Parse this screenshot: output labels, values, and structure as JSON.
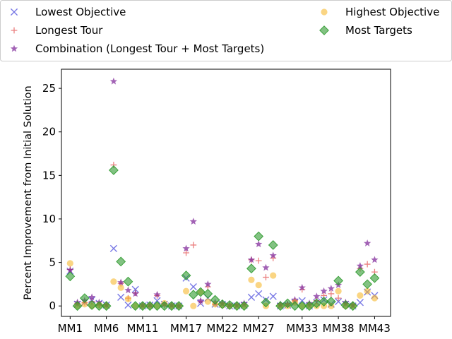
{
  "chart_data": {
    "type": "scatter",
    "title": "",
    "xlabel": "",
    "ylabel": "Percent Improvement from Initial Solution",
    "ylim": [
      -1.2,
      27.2
    ],
    "xlim": [
      -1.2,
      44.2
    ],
    "yticks": [
      0,
      5,
      10,
      15,
      20,
      25
    ],
    "xticks": [
      {
        "x": 0,
        "label": "MM1"
      },
      {
        "x": 5,
        "label": "MM6"
      },
      {
        "x": 10,
        "label": "MM11"
      },
      {
        "x": 16,
        "label": "MM17"
      },
      {
        "x": 21,
        "label": "MM22"
      },
      {
        "x": 26,
        "label": "MM27"
      },
      {
        "x": 32,
        "label": "MM33"
      },
      {
        "x": 37,
        "label": "MM38"
      },
      {
        "x": 42,
        "label": "MM43"
      }
    ],
    "grid": false,
    "legend_placement": "top",
    "series": [
      {
        "name": "Lowest Objective",
        "marker": "x",
        "color": "#4c4cdc",
        "values": [
          4.0,
          0.2,
          0.4,
          0.7,
          0.3,
          0.1,
          6.6,
          1.0,
          0.1,
          1.9,
          0.0,
          0.1,
          0.6,
          0.2,
          0.0,
          0.0,
          3.2,
          2.2,
          0.3,
          0.9,
          0.2,
          0.2,
          0.0,
          0.0,
          0.1,
          1.0,
          1.4,
          0.7,
          1.1,
          0.0,
          0.1,
          0.4,
          0.6,
          0.0,
          0.4,
          0.7,
          0.2,
          0.5,
          0.2,
          0.0,
          0.4,
          1.6,
          1.2
        ]
      },
      {
        "name": "Longest Tour",
        "marker": "plus",
        "color": "#e03c3c",
        "values": [
          4.2,
          0.3,
          0.4,
          0.5,
          0.1,
          0.1,
          16.2,
          2.6,
          0.9,
          1.5,
          0.0,
          0.0,
          1.2,
          0.1,
          0.0,
          0.0,
          6.1,
          7.0,
          0.5,
          2.2,
          0.2,
          0.3,
          0.0,
          0.1,
          0.2,
          5.3,
          5.2,
          3.3,
          5.5,
          0.1,
          0.2,
          0.6,
          1.9,
          0.2,
          0.6,
          1.2,
          1.4,
          0.9,
          0.3,
          0.1,
          4.3,
          4.8,
          3.9
        ]
      },
      {
        "name": "Combination (Longest Tour + Most Targets)",
        "marker": "star",
        "color": "#7b1f95",
        "values": [
          4.1,
          0.4,
          0.6,
          1.0,
          0.4,
          0.1,
          25.8,
          2.7,
          1.8,
          1.4,
          0.1,
          0.1,
          1.3,
          0.2,
          0.1,
          0.0,
          6.6,
          9.7,
          0.6,
          2.5,
          0.4,
          0.3,
          0.1,
          0.1,
          0.3,
          5.3,
          7.1,
          4.4,
          5.8,
          0.2,
          0.2,
          0.7,
          2.1,
          0.3,
          1.1,
          1.7,
          2.0,
          2.4,
          0.4,
          0.1,
          4.6,
          7.2,
          5.3
        ]
      },
      {
        "name": "Highest Objective",
        "marker": "circle",
        "color": "#f6b21d",
        "values": [
          4.9,
          0.0,
          0.2,
          0.0,
          0.1,
          0.0,
          2.8,
          2.1,
          0.8,
          0.0,
          0.0,
          0.0,
          0.0,
          0.3,
          0.0,
          0.0,
          1.7,
          0.0,
          1.6,
          0.5,
          0.2,
          0.1,
          0.0,
          0.0,
          0.0,
          3.0,
          2.4,
          0.0,
          3.5,
          0.0,
          0.0,
          0.4,
          0.0,
          0.0,
          0.0,
          0.0,
          0.0,
          1.7,
          0.0,
          0.0,
          1.2,
          1.7,
          0.9
        ]
      },
      {
        "name": "Most Targets",
        "marker": "diamond",
        "color": "#2e9a2e",
        "values": [
          3.4,
          0.0,
          0.9,
          0.1,
          0.0,
          0.0,
          15.6,
          5.1,
          2.8,
          0.0,
          0.0,
          0.0,
          0.0,
          0.0,
          0.0,
          0.0,
          3.5,
          1.3,
          1.6,
          1.4,
          0.7,
          0.2,
          0.1,
          0.0,
          0.0,
          4.3,
          8.0,
          0.4,
          7.0,
          0.0,
          0.3,
          0.0,
          0.0,
          0.0,
          0.3,
          0.5,
          0.5,
          2.9,
          0.1,
          0.0,
          3.9,
          2.5,
          3.2
        ]
      }
    ]
  }
}
